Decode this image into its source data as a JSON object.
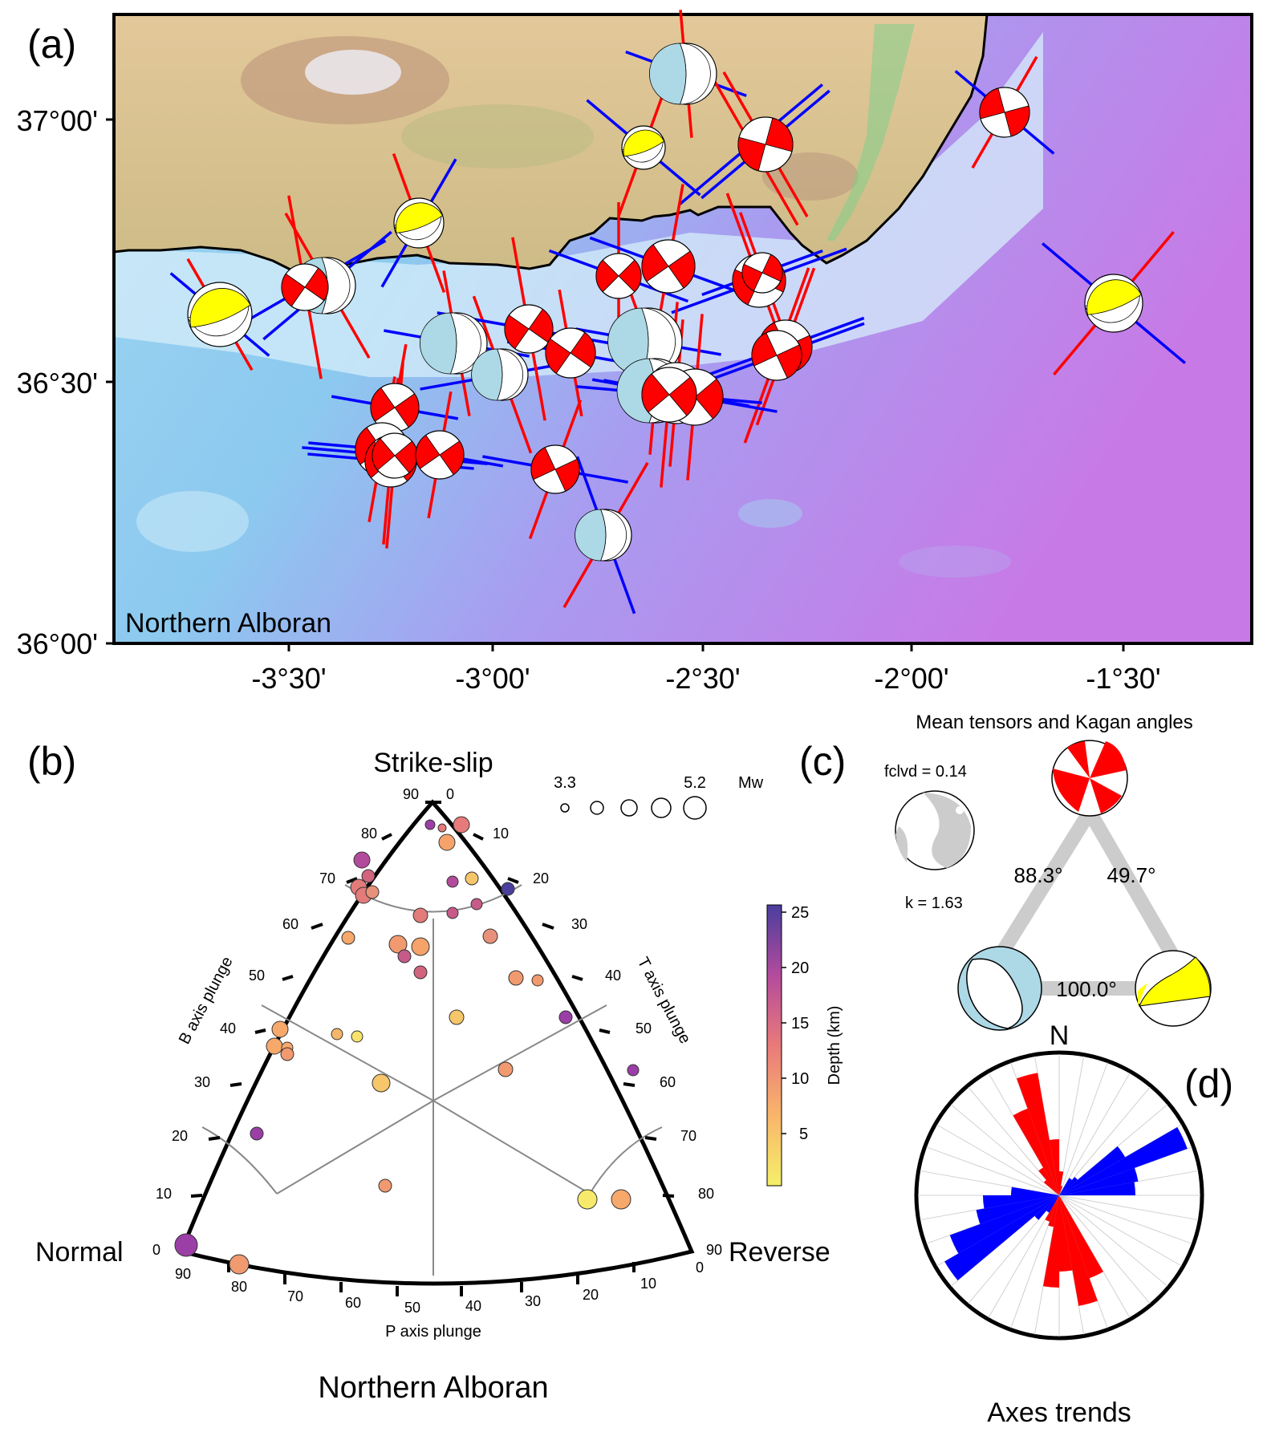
{
  "panel_a": {
    "label": "(a)",
    "region_label": "Northern Alboran",
    "lat_ticks": [
      "37°00'",
      "36°30'",
      "36°00'"
    ],
    "lon_ticks": [
      "-3°30'",
      "-3°00'",
      "-2°30'",
      "-2°00'",
      "-1°30'"
    ],
    "colors": {
      "land": "#d8c08a",
      "sea_shallow": "#d8f0fa",
      "sea_mid": "#8fcff0",
      "sea_deep": "#b27ae8",
      "red_mechanism": "#ff0000",
      "yellow_mechanism": "#ffff00",
      "blue_mechanism": "#add8e6",
      "p_axis": "#ff0000",
      "t_axis": "#0000ff"
    }
  },
  "panel_b": {
    "label": "(b)",
    "corner_top": "Strike-slip",
    "corner_left": "Normal",
    "corner_right": "Reverse",
    "left_axis_title": "B axis plunge",
    "right_axis_title": "T axis plunge",
    "bottom_axis_title": "P axis plunge",
    "subtitle": "Northern Alboran",
    "size_legend": {
      "min": "3.3",
      "max": "5.2",
      "unit": "Mw"
    },
    "colorbar": {
      "title": "Depth (km)",
      "ticks": [
        "25",
        "20",
        "15",
        "10",
        "5"
      ]
    },
    "left_ticks": [
      "90",
      "80",
      "70",
      "60",
      "50",
      "40",
      "30",
      "20",
      "10",
      "0"
    ],
    "right_ticks": [
      "0",
      "10",
      "20",
      "30",
      "40",
      "50",
      "60",
      "70",
      "80",
      "90"
    ],
    "bottom_ticks": [
      "90",
      "80",
      "70",
      "60",
      "50",
      "40",
      "30",
      "20",
      "10",
      "0"
    ]
  },
  "panel_c": {
    "label": "(c)",
    "title": "Mean tensors and Kagan angles",
    "fclvd": "fclvd = 0.14",
    "k": "k = 1.63",
    "angle_red_blue": "88.3°",
    "angle_red_yellow": "49.7°",
    "angle_blue_yellow": "100.0°"
  },
  "panel_d": {
    "label": "(d)",
    "north": "N",
    "title": "Axes trends"
  }
}
